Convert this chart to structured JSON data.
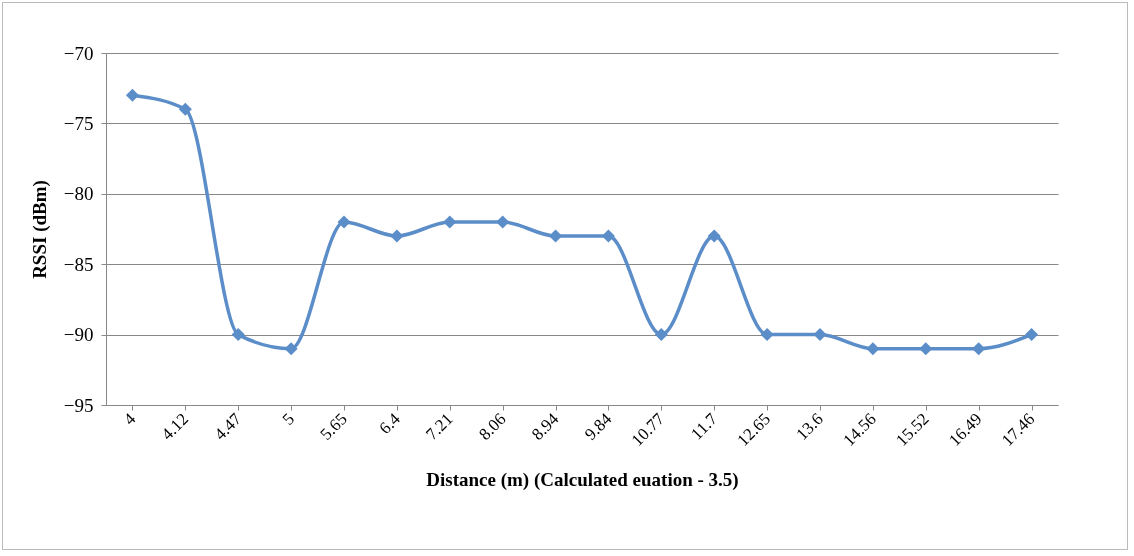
{
  "chart_data": {
    "type": "line",
    "xlabel": "Distance (m) (Calculated euation - 3.5)",
    "ylabel": "RSSI (dBm)",
    "categories": [
      "4",
      "4.12",
      "4.47",
      "5",
      "5.65",
      "6.4",
      "7.21",
      "8.06",
      "8.94",
      "9.84",
      "10.77",
      "11.7",
      "12.65",
      "13.6",
      "14.56",
      "15.52",
      "16.49",
      "17.46"
    ],
    "series": [
      {
        "color": "#5b8dc9",
        "values": [
          -73,
          -74,
          -90,
          -91,
          -82,
          -83,
          -82,
          -82,
          -83,
          -83,
          -90,
          -83,
          -90,
          -90,
          -91,
          -91,
          -91,
          -90
        ]
      }
    ],
    "ylim": [
      -95,
      -70
    ],
    "yticks": [
      -95,
      -90,
      -85,
      -80,
      -75,
      -70
    ],
    "grid": "y",
    "legend": false,
    "marker": "diamond",
    "line_style": "solid"
  }
}
